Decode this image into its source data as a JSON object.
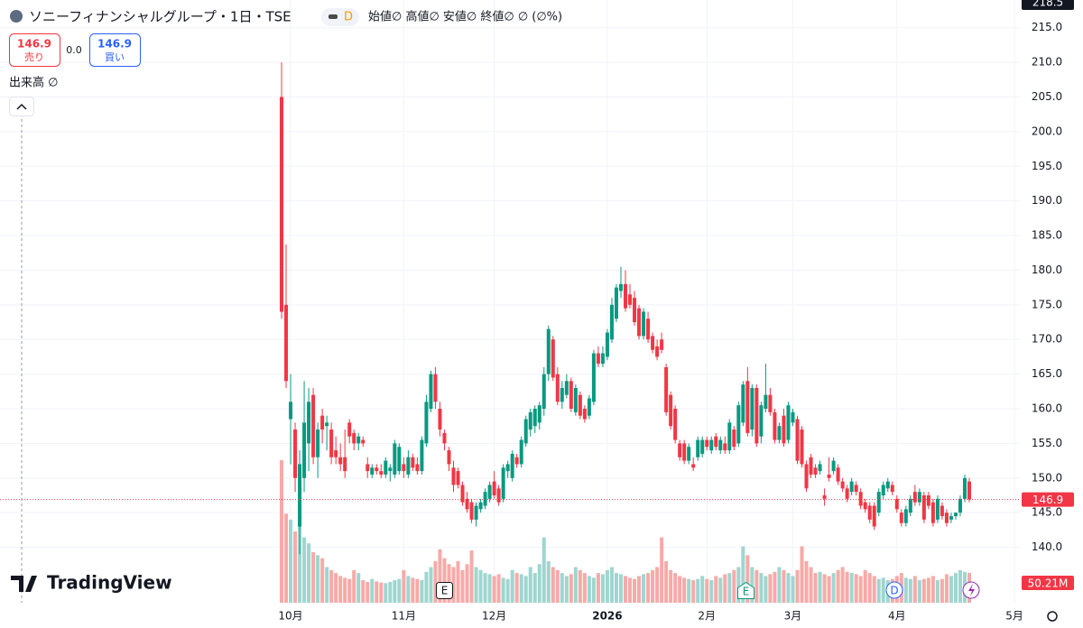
{
  "header": {
    "title": "ソニーフィナンシャルグループ・1日・TSE",
    "badge": "D",
    "ohlc_legend": "始値∅  高値∅  安値∅  終値∅  ∅ (∅%)"
  },
  "trade": {
    "sell_price": "146.9",
    "sell_label": "売り",
    "spread": "0.0",
    "buy_price": "146.9",
    "buy_label": "買い"
  },
  "volume_legend": "出来高  ∅",
  "brand": "TradingView",
  "events": [
    "E",
    "E",
    "D"
  ],
  "chart_data": {
    "type": "candlestick",
    "crosshair_price": 218.5,
    "up_color": "#089981",
    "down_color": "#f23645",
    "volume_up_color": "#9fd6cf",
    "volume_down_color": "#f7aaa8",
    "ylim": [
      132,
      219
    ],
    "yticks": [
      {
        "value": 140,
        "label": "140.0"
      },
      {
        "value": 145,
        "label": "145.0"
      },
      {
        "value": 150,
        "label": "150.0"
      },
      {
        "value": 155,
        "label": "155.0"
      },
      {
        "value": 160,
        "label": "160.0"
      },
      {
        "value": 165,
        "label": "165.0"
      },
      {
        "value": 170,
        "label": "170.0"
      },
      {
        "value": 175,
        "label": "175.0"
      },
      {
        "value": 180,
        "label": "180.0"
      },
      {
        "value": 185,
        "label": "185.0"
      },
      {
        "value": 190,
        "label": "190.0"
      },
      {
        "value": 195,
        "label": "195.0"
      },
      {
        "value": 200,
        "label": "200.0"
      },
      {
        "value": 205,
        "label": "205.0"
      },
      {
        "value": 210,
        "label": "210.0"
      },
      {
        "value": 215,
        "label": "215.0"
      }
    ],
    "xticks": [
      {
        "value": 2,
        "label": "10月"
      },
      {
        "value": 27,
        "label": "11月"
      },
      {
        "value": 47,
        "label": "12月"
      },
      {
        "value": 72,
        "label": "2026"
      },
      {
        "value": 94,
        "label": "2月"
      },
      {
        "value": 113,
        "label": "3月"
      },
      {
        "value": 136,
        "label": "4月"
      },
      {
        "value": 162,
        "label": "5月"
      }
    ],
    "grid": true,
    "volume_lim": [
      0,
      300
    ],
    "volume_last_label": "50.21M",
    "ohlc": [
      [
        205,
        210,
        173,
        174
      ],
      [
        175,
        183.7,
        163,
        164
      ],
      [
        158.5,
        165,
        152,
        161
      ],
      [
        157,
        158,
        148,
        150
      ],
      [
        143,
        154,
        139,
        152
      ],
      [
        150,
        164,
        148,
        158
      ],
      [
        155,
        163,
        151,
        161
      ],
      [
        162,
        163,
        152,
        153
      ],
      [
        153,
        158,
        150,
        157
      ],
      [
        159,
        160,
        155,
        157
      ],
      [
        157.5,
        159,
        154,
        158
      ],
      [
        157,
        158,
        152,
        153
      ],
      [
        154,
        156,
        152,
        153
      ],
      [
        153,
        155,
        151,
        152
      ],
      [
        153,
        157,
        150,
        151
      ],
      [
        158,
        158.5,
        155,
        156
      ],
      [
        156.5,
        157,
        154,
        155
      ],
      [
        155,
        156.5,
        154,
        156
      ],
      [
        155.5,
        156,
        154.5,
        155
      ],
      [
        152,
        153,
        150,
        151
      ],
      [
        150.5,
        152,
        150,
        151.5
      ],
      [
        151.5,
        152,
        150.5,
        151
      ],
      [
        151,
        152,
        150,
        150.5
      ],
      [
        150.5,
        153,
        150,
        152.5
      ],
      [
        151,
        152,
        149.5,
        151.5
      ],
      [
        150.5,
        155.5,
        150,
        155
      ],
      [
        151,
        155,
        150.5,
        154.5
      ],
      [
        152,
        153,
        150,
        151
      ],
      [
        150.5,
        154,
        150,
        153
      ],
      [
        153,
        153.5,
        151,
        151.5
      ],
      [
        152,
        153,
        150.5,
        151
      ],
      [
        151,
        156,
        150.5,
        155.5
      ],
      [
        155,
        162,
        154.5,
        161
      ],
      [
        160,
        165.5,
        159.5,
        165
      ],
      [
        165,
        166,
        160,
        161
      ],
      [
        160,
        161,
        156,
        157
      ],
      [
        156.5,
        157,
        154,
        155
      ],
      [
        154,
        154.5,
        151,
        152
      ],
      [
        151.5,
        152.5,
        148,
        149
      ],
      [
        151,
        151.5,
        148.5,
        149
      ],
      [
        149,
        149.5,
        146,
        146.5
      ],
      [
        147,
        148,
        145,
        145.5
      ],
      [
        146.5,
        147,
        143.5,
        144
      ],
      [
        144,
        146.5,
        143,
        146
      ],
      [
        145.5,
        147,
        145,
        146.5
      ],
      [
        146,
        148.5,
        145.5,
        148
      ],
      [
        147,
        149.5,
        146.5,
        149
      ],
      [
        149.5,
        151,
        147,
        147.5
      ],
      [
        148.5,
        149,
        146,
        146.5
      ],
      [
        147,
        152,
        146.5,
        151.5
      ],
      [
        151,
        152.5,
        150,
        152
      ],
      [
        150,
        154,
        149.5,
        153.5
      ],
      [
        153,
        153.5,
        151.5,
        152
      ],
      [
        152,
        156,
        151.5,
        155.5
      ],
      [
        155,
        159,
        154.5,
        158.5
      ],
      [
        157,
        160,
        156,
        159.5
      ],
      [
        157.5,
        160.5,
        156.5,
        160
      ],
      [
        158,
        161,
        157,
        160.5
      ],
      [
        160,
        166,
        159,
        165
      ],
      [
        165,
        172,
        164,
        171.5
      ],
      [
        170,
        170.5,
        164,
        164.5
      ],
      [
        165,
        166,
        160.5,
        161
      ],
      [
        161,
        164,
        160,
        163
      ],
      [
        162,
        165,
        161.5,
        164
      ],
      [
        164,
        164.5,
        159.5,
        160
      ],
      [
        159.5,
        163.5,
        159,
        163
      ],
      [
        162,
        162.5,
        158.5,
        159
      ],
      [
        160,
        160.5,
        158,
        158.5
      ],
      [
        159,
        162,
        158.5,
        161.5
      ],
      [
        161,
        168.5,
        160.5,
        168
      ],
      [
        168,
        169,
        166,
        166.5
      ],
      [
        166.5,
        169,
        166,
        168
      ],
      [
        167.5,
        171.5,
        167,
        171
      ],
      [
        170,
        176,
        169.5,
        175
      ],
      [
        173,
        178,
        172.5,
        177.5
      ],
      [
        177,
        180.5,
        176,
        178
      ],
      [
        178,
        180,
        174,
        174.5
      ],
      [
        176.5,
        178,
        174.5,
        175
      ],
      [
        176,
        177,
        172,
        172.5
      ],
      [
        174.5,
        175,
        170,
        170.5
      ],
      [
        170.5,
        174.5,
        170,
        174
      ],
      [
        173,
        174,
        169.5,
        170
      ],
      [
        170.5,
        171,
        168,
        168.5
      ],
      [
        169,
        170,
        167,
        167.5
      ],
      [
        170,
        171,
        168,
        168.5
      ],
      [
        166,
        166.5,
        159,
        159.5
      ],
      [
        162,
        162.5,
        157,
        157.5
      ],
      [
        160,
        160.5,
        155,
        155.5
      ],
      [
        155,
        155.5,
        152.5,
        153
      ],
      [
        155,
        155.5,
        152,
        152.5
      ],
      [
        152.5,
        155,
        152,
        154.5
      ],
      [
        152,
        153,
        151,
        151.5
      ],
      [
        153,
        156,
        152.5,
        155.5
      ],
      [
        153.5,
        156,
        153,
        155.5
      ],
      [
        155.5,
        156,
        154,
        154.5
      ],
      [
        154,
        156,
        153.5,
        155.5
      ],
      [
        156,
        156.5,
        154,
        154.5
      ],
      [
        154,
        156,
        153.5,
        155.5
      ],
      [
        155,
        156,
        153.5,
        154
      ],
      [
        154,
        158.5,
        153.5,
        158
      ],
      [
        157,
        157.5,
        154,
        154.5
      ],
      [
        155,
        161,
        154.5,
        160.5
      ],
      [
        158,
        164,
        157.5,
        163.5
      ],
      [
        164,
        166,
        156,
        156.5
      ],
      [
        157,
        163.5,
        156,
        163
      ],
      [
        163,
        163.5,
        154.5,
        155
      ],
      [
        156,
        161,
        155,
        160.5
      ],
      [
        160,
        166.5,
        159.5,
        162
      ],
      [
        162,
        163,
        159,
        159.5
      ],
      [
        159.5,
        160,
        155,
        155.5
      ],
      [
        155.5,
        158,
        155,
        157.5
      ],
      [
        159,
        160,
        154.5,
        155
      ],
      [
        155.5,
        161,
        155,
        160.5
      ],
      [
        158,
        160,
        157.5,
        159.5
      ],
      [
        158.5,
        159,
        152,
        152.5
      ],
      [
        157,
        157.5,
        151.5,
        152
      ],
      [
        152,
        152.5,
        148,
        148.5
      ],
      [
        153,
        153.5,
        150,
        150.5
      ],
      [
        151.5,
        152,
        150,
        150.5
      ],
      [
        151,
        152.5,
        150.5,
        152
      ],
      [
        147.5,
        148.5,
        146,
        147
      ],
      [
        150.5,
        153,
        149.5,
        150
      ],
      [
        151,
        153,
        150.5,
        152.5
      ],
      [
        151.5,
        152,
        149,
        149.5
      ],
      [
        149.5,
        150,
        148,
        148.5
      ],
      [
        148.5,
        149,
        146.5,
        147
      ],
      [
        148,
        150,
        147.5,
        149.5
      ],
      [
        149,
        149.5,
        147.5,
        148
      ],
      [
        148,
        148.5,
        145.5,
        146
      ],
      [
        146.5,
        147,
        145,
        145.5
      ],
      [
        146,
        146.5,
        143.5,
        144
      ],
      [
        146,
        146.5,
        142.5,
        143
      ],
      [
        145,
        148.5,
        144.5,
        148
      ],
      [
        147.5,
        149.5,
        147,
        149
      ],
      [
        148.5,
        150,
        148,
        149.5
      ],
      [
        149,
        149.5,
        147.5,
        148
      ],
      [
        147,
        147.5,
        145,
        145.5
      ],
      [
        145,
        145.5,
        143,
        143.5
      ],
      [
        143.5,
        146,
        143,
        145.5
      ],
      [
        145,
        147.5,
        144.5,
        147
      ],
      [
        148,
        149,
        146,
        146.5
      ],
      [
        146.5,
        148.5,
        146,
        148
      ],
      [
        147.5,
        148,
        143.5,
        144
      ],
      [
        147.5,
        148,
        145.5,
        146
      ],
      [
        146.5,
        147,
        143,
        143.5
      ],
      [
        144,
        147.5,
        143.5,
        147
      ],
      [
        146,
        146.5,
        144,
        144.5
      ],
      [
        145,
        145.5,
        143,
        143.5
      ],
      [
        144,
        145,
        143.5,
        144.5
      ],
      [
        144.5,
        145,
        144,
        145
      ],
      [
        145,
        147.5,
        144.5,
        147
      ],
      [
        147,
        150.5,
        146.5,
        150
      ],
      [
        149.5,
        150,
        146.5,
        146.9
      ]
    ],
    "volume": [
      240,
      150,
      140,
      120,
      195,
      110,
      100,
      85,
      80,
      75,
      60,
      55,
      50,
      45,
      42,
      40,
      55,
      50,
      38,
      35,
      40,
      36,
      34,
      33,
      35,
      38,
      40,
      55,
      45,
      42,
      40,
      38,
      52,
      60,
      70,
      90,
      75,
      65,
      60,
      70,
      55,
      65,
      88,
      60,
      55,
      50,
      48,
      45,
      48,
      42,
      40,
      55,
      50,
      48,
      45,
      60,
      50,
      65,
      110,
      70,
      60,
      55,
      50,
      45,
      48,
      60,
      55,
      50,
      45,
      42,
      50,
      48,
      55,
      60,
      50,
      48,
      45,
      42,
      40,
      45,
      48,
      50,
      55,
      60,
      110,
      70,
      55,
      50,
      45,
      42,
      40,
      38,
      40,
      45,
      40,
      38,
      45,
      42,
      48,
      50,
      55,
      60,
      95,
      80,
      60,
      55,
      50,
      45,
      48,
      52,
      60,
      55,
      50,
      45,
      55,
      95,
      70,
      60,
      50,
      52,
      48,
      45,
      50,
      55,
      60,
      52,
      50,
      48,
      45,
      55,
      50,
      45,
      40,
      42,
      38,
      40,
      45,
      50,
      42,
      40,
      45,
      38,
      40,
      42,
      45,
      38,
      40,
      48,
      45,
      50,
      55,
      52,
      50.21
    ]
  }
}
